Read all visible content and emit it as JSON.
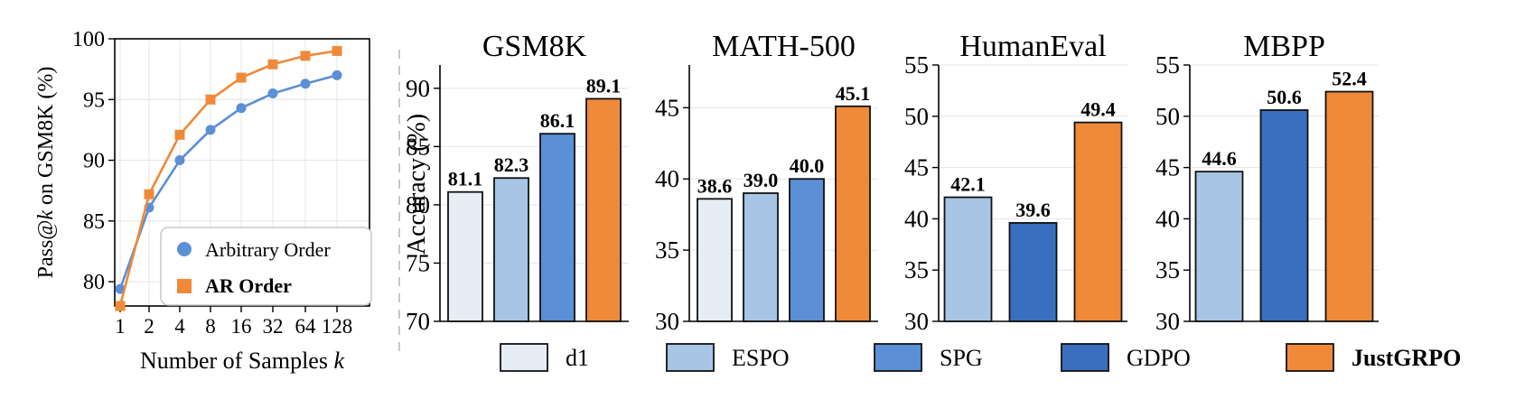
{
  "colors": {
    "d1": "#e6edf5",
    "ESPO": "#a8c5e6",
    "SPG": "#5b8fd6",
    "GDPO": "#3a6fc0",
    "JustGRPO": "#ef8a3a",
    "arbitrary": "#5b8fd6",
    "ar": "#ef8a3a"
  },
  "chart_data": [
    {
      "type": "line",
      "xlabel_prefix": "Number of Samples ",
      "xlabel_var": "k",
      "ylabel_prefix": "Pass@",
      "ylabel_var": "k",
      "ylabel_suffix": " on GSM8K (%)",
      "x": [
        "1",
        "2",
        "4",
        "8",
        "16",
        "32",
        "64",
        "128"
      ],
      "ylim": [
        78,
        100
      ],
      "yticks": [
        "80",
        "85",
        "90",
        "95",
        "100"
      ],
      "series": [
        {
          "name": "Arbitrary Order",
          "values": [
            79.4,
            86.1,
            90.0,
            92.5,
            94.3,
            95.5,
            96.3,
            97.0
          ]
        },
        {
          "name": "AR Order",
          "values": [
            78.0,
            87.2,
            92.1,
            95.0,
            96.8,
            97.9,
            98.6,
            99.0
          ]
        }
      ],
      "grid": true,
      "legend": "bottom-right"
    },
    {
      "type": "bar",
      "title": "GSM8K",
      "ylabel": "Accuracy (%)",
      "ylim": [
        70,
        92
      ],
      "yticks": [
        "70",
        "75",
        "80",
        "85",
        "90"
      ],
      "methods": [
        "d1",
        "ESPO",
        "SPG",
        "JustGRPO"
      ],
      "values": [
        81.1,
        82.3,
        86.1,
        89.1
      ],
      "labels": [
        "81.1",
        "82.3",
        "86.1",
        "89.1"
      ]
    },
    {
      "type": "bar",
      "title": "MATH-500",
      "ylim": [
        30,
        48
      ],
      "yticks": [
        "30",
        "35",
        "40",
        "45"
      ],
      "methods": [
        "d1",
        "ESPO",
        "SPG",
        "JustGRPO"
      ],
      "values": [
        38.6,
        39.0,
        40.0,
        45.1
      ],
      "labels": [
        "38.6",
        "39.0",
        "40.0",
        "45.1"
      ]
    },
    {
      "type": "bar",
      "title": "HumanEval",
      "ylim": [
        30,
        55
      ],
      "yticks": [
        "30",
        "35",
        "40",
        "45",
        "50",
        "55"
      ],
      "methods": [
        "ESPO",
        "GDPO",
        "JustGRPO"
      ],
      "values": [
        42.1,
        39.6,
        49.4
      ],
      "labels": [
        "42.1",
        "39.6",
        "49.4"
      ]
    },
    {
      "type": "bar",
      "title": "MBPP",
      "ylim": [
        30,
        55
      ],
      "yticks": [
        "30",
        "35",
        "40",
        "45",
        "50",
        "55"
      ],
      "methods": [
        "ESPO",
        "GDPO",
        "JustGRPO"
      ],
      "values": [
        44.6,
        50.6,
        52.4
      ],
      "labels": [
        "44.6",
        "50.6",
        "52.4"
      ]
    }
  ],
  "legend": [
    "d1",
    "ESPO",
    "SPG",
    "GDPO",
    "JustGRPO"
  ]
}
